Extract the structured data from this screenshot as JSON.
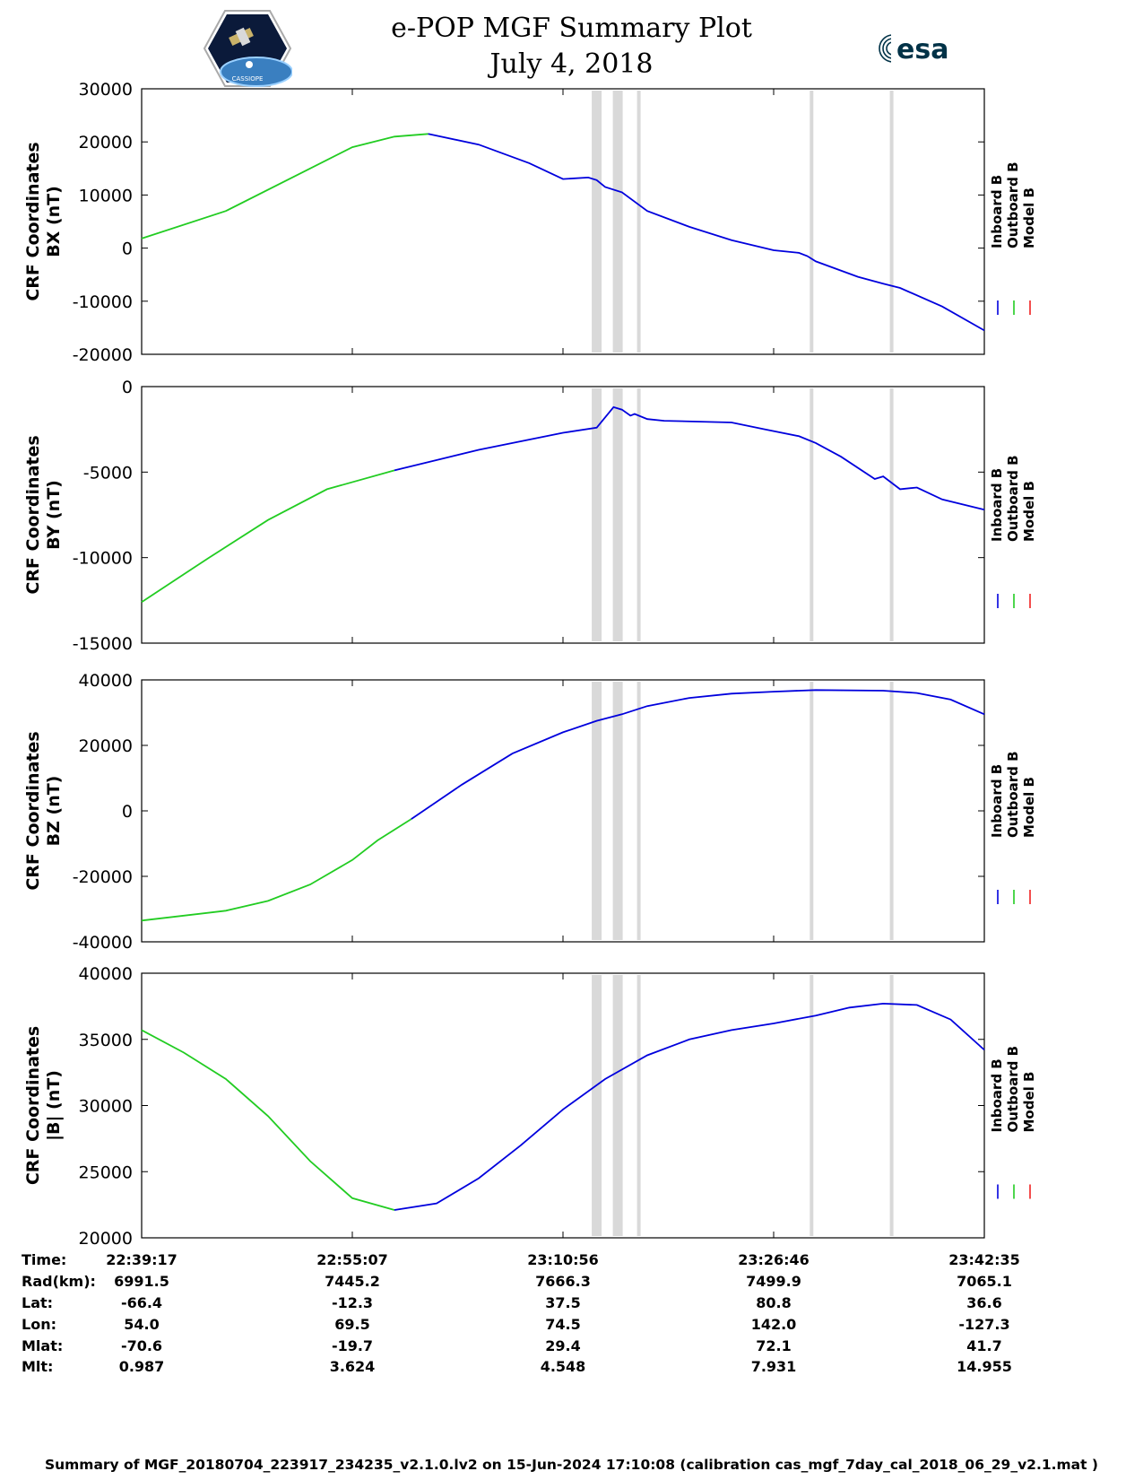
{
  "header": {
    "title": "e-POP MGF Summary Plot",
    "date": "July 4, 2018",
    "left_logo": "CASSIOPE",
    "right_logo": "esa"
  },
  "legend": {
    "labels": [
      "Inboard B",
      "Outboard B",
      "Model B"
    ],
    "colors": [
      "#0000dd",
      "#22cc22",
      "#ee2222"
    ]
  },
  "chart_data": [
    {
      "type": "line",
      "ylabel_line1": "CRF Coordinates",
      "ylabel_line2": "BX (nT)",
      "ylim": [
        -20000,
        30000
      ],
      "yticks": [
        "30000",
        "20000",
        "10000",
        "0",
        "-10000",
        "-20000"
      ],
      "ytick_values": [
        30000,
        20000,
        10000,
        0,
        -10000,
        -20000
      ],
      "series": [
        {
          "name": "Outboard B",
          "x": [
            0,
            0.1,
            0.2,
            0.25,
            0.3,
            0.34
          ],
          "y": [
            1800,
            7000,
            15000,
            19000,
            21000,
            21500
          ]
        },
        {
          "name": "Inboard B",
          "x": [
            0.34,
            0.4,
            0.46,
            0.5,
            0.53,
            0.54,
            0.55,
            0.57,
            0.6,
            0.65,
            0.7,
            0.75,
            0.78,
            0.79,
            0.8,
            0.85,
            0.88,
            0.9,
            0.95,
            1.0
          ],
          "y": [
            21500,
            19500,
            16000,
            13000,
            13300,
            12800,
            11500,
            10500,
            7000,
            4000,
            1500,
            -400,
            -900,
            -1500,
            -2500,
            -5400,
            -6700,
            -7500,
            -11000,
            -15500
          ]
        }
      ],
      "gaps": [
        0.54,
        0.565,
        0.59,
        0.795,
        0.89
      ]
    },
    {
      "type": "line",
      "ylabel_line1": "CRF Coordinates",
      "ylabel_line2": "BY (nT)",
      "ylim": [
        -15000,
        0
      ],
      "yticks": [
        "0",
        "-5000",
        "-10000",
        "-15000"
      ],
      "ytick_values": [
        0,
        -5000,
        -10000,
        -15000
      ],
      "series": [
        {
          "name": "Outboard B",
          "x": [
            0,
            0.08,
            0.15,
            0.22,
            0.3
          ],
          "y": [
            -12600,
            -10000,
            -7800,
            -6000,
            -4900
          ]
        },
        {
          "name": "Inboard B",
          "x": [
            0.3,
            0.4,
            0.5,
            0.54,
            0.56,
            0.57,
            0.58,
            0.585,
            0.6,
            0.62,
            0.7,
            0.74,
            0.78,
            0.8,
            0.83,
            0.87,
            0.88,
            0.9,
            0.92,
            0.95,
            1.0
          ],
          "y": [
            -4900,
            -3700,
            -2700,
            -2400,
            -1200,
            -1350,
            -1700,
            -1600,
            -1900,
            -2000,
            -2100,
            -2500,
            -2900,
            -3300,
            -4100,
            -5400,
            -5250,
            -6000,
            -5900,
            -6600,
            -7200
          ]
        }
      ],
      "gaps": [
        0.54,
        0.565,
        0.59,
        0.795,
        0.89
      ]
    },
    {
      "type": "line",
      "ylabel_line1": "CRF Coordinates",
      "ylabel_line2": "BZ (nT)",
      "ylim": [
        -40000,
        40000
      ],
      "yticks": [
        "40000",
        "20000",
        "0",
        "-20000",
        "-40000"
      ],
      "ytick_values": [
        40000,
        20000,
        0,
        -20000,
        -40000
      ],
      "series": [
        {
          "name": "Outboard B",
          "x": [
            0,
            0.1,
            0.15,
            0.2,
            0.25,
            0.28,
            0.32
          ],
          "y": [
            -33500,
            -30500,
            -27500,
            -22500,
            -15000,
            -9000,
            -2500
          ]
        },
        {
          "name": "Inboard B",
          "x": [
            0.32,
            0.38,
            0.44,
            0.5,
            0.54,
            0.57,
            0.6,
            0.65,
            0.7,
            0.75,
            0.8,
            0.88,
            0.92,
            0.96,
            1.0
          ],
          "y": [
            -2500,
            8000,
            17500,
            24000,
            27500,
            29500,
            32000,
            34500,
            35800,
            36400,
            36900,
            36700,
            36000,
            34000,
            29500
          ]
        }
      ],
      "gaps": [
        0.54,
        0.565,
        0.59,
        0.795,
        0.89
      ]
    },
    {
      "type": "line",
      "ylabel_line1": "CRF Coordinates",
      "ylabel_line2": "|B| (nT)",
      "ylim": [
        20000,
        40000
      ],
      "yticks": [
        "40000",
        "35000",
        "30000",
        "25000",
        "20000"
      ],
      "ytick_values": [
        40000,
        35000,
        30000,
        25000,
        20000
      ],
      "series": [
        {
          "name": "Outboard B",
          "x": [
            0,
            0.05,
            0.1,
            0.15,
            0.2,
            0.25,
            0.3
          ],
          "y": [
            35700,
            34000,
            32000,
            29200,
            25800,
            23000,
            22100
          ]
        },
        {
          "name": "Inboard B",
          "x": [
            0.3,
            0.35,
            0.4,
            0.45,
            0.5,
            0.55,
            0.6,
            0.65,
            0.7,
            0.75,
            0.8,
            0.84,
            0.88,
            0.92,
            0.96,
            1.0
          ],
          "y": [
            22100,
            22600,
            24500,
            27000,
            29700,
            32000,
            33800,
            35000,
            35700,
            36200,
            36800,
            37400,
            37700,
            37600,
            36500,
            34200
          ]
        }
      ],
      "gaps": [
        0.54,
        0.565,
        0.59,
        0.795,
        0.89
      ]
    }
  ],
  "table": {
    "row_labels": [
      "Time:",
      "Rad(km):",
      "Lat:",
      "Lon:",
      "Mlat:",
      "Mlt:"
    ],
    "columns": [
      [
        "22:39:17",
        "6991.5",
        "-66.4",
        "54.0",
        "-70.6",
        "0.987"
      ],
      [
        "22:55:07",
        "7445.2",
        "-12.3",
        "69.5",
        "-19.7",
        "3.624"
      ],
      [
        "23:10:56",
        "7666.3",
        "37.5",
        "74.5",
        "29.4",
        "4.548"
      ],
      [
        "23:26:46",
        "7499.9",
        "80.8",
        "142.0",
        "72.1",
        "7.931"
      ],
      [
        "23:42:35",
        "7065.1",
        "36.6",
        "-127.3",
        "41.7",
        "14.955"
      ]
    ]
  },
  "footer": "Summary of MGF_20180704_223917_234235_v2.1.0.lv2 on 15-Jun-2024 17:10:08 (calibration cas_mgf_7day_cal_2018_06_29_v2.1.mat )"
}
